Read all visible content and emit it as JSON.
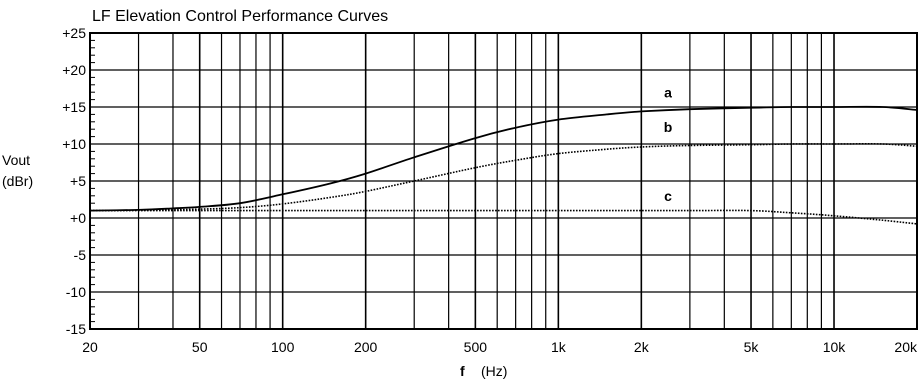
{
  "chart_data": {
    "type": "line",
    "title": "LF Elevation Control Performance Curves",
    "xlabel_symbol": "f",
    "xlabel_unit": "(Hz)",
    "ylabel_line1": "Vout",
    "ylabel_line2": "(dBr)",
    "x_scale": "log",
    "xlim": [
      20,
      20000
    ],
    "ylim": [
      -15,
      25
    ],
    "grid": true,
    "xticks": [
      {
        "v": 20,
        "label": "20"
      },
      {
        "v": 50,
        "label": "50"
      },
      {
        "v": 100,
        "label": "100"
      },
      {
        "v": 200,
        "label": "200"
      },
      {
        "v": 500,
        "label": "500"
      },
      {
        "v": 1000,
        "label": "1k"
      },
      {
        "v": 2000,
        "label": "2k"
      },
      {
        "v": 5000,
        "label": "5k"
      },
      {
        "v": 10000,
        "label": "10k"
      },
      {
        "v": 20000,
        "label": "20k"
      }
    ],
    "yticks": [
      {
        "v": 25,
        "label": "+25"
      },
      {
        "v": 20,
        "label": "+20"
      },
      {
        "v": 15,
        "label": "+15"
      },
      {
        "v": 10,
        "label": "+10"
      },
      {
        "v": 5,
        "label": "+5"
      },
      {
        "v": 0,
        "label": "+0"
      },
      {
        "v": -5,
        "label": "-5"
      },
      {
        "v": -10,
        "label": "-10"
      },
      {
        "v": -15,
        "label": "-15"
      }
    ],
    "series": [
      {
        "name": "a",
        "style": "solid",
        "x": [
          20,
          30,
          40,
          50,
          70,
          100,
          150,
          200,
          300,
          500,
          700,
          1000,
          1500,
          2000,
          3000,
          5000,
          7000,
          10000,
          15000,
          20000
        ],
        "values": [
          1.0,
          1.1,
          1.3,
          1.5,
          2.0,
          3.2,
          4.7,
          6.0,
          8.2,
          10.8,
          12.2,
          13.3,
          14.0,
          14.4,
          14.7,
          14.9,
          15.0,
          15.0,
          15.0,
          14.6
        ]
      },
      {
        "name": "b",
        "style": "dotted",
        "x": [
          20,
          30,
          40,
          50,
          70,
          100,
          150,
          200,
          300,
          500,
          700,
          1000,
          1500,
          2000,
          3000,
          5000,
          7000,
          10000,
          15000,
          20000
        ],
        "values": [
          1.0,
          1.05,
          1.1,
          1.2,
          1.4,
          1.9,
          2.8,
          3.6,
          5.0,
          6.8,
          7.8,
          8.7,
          9.3,
          9.6,
          9.8,
          9.9,
          10.0,
          10.0,
          10.0,
          9.7
        ]
      },
      {
        "name": "c",
        "style": "dotted",
        "x": [
          20,
          50,
          100,
          200,
          500,
          1000,
          2000,
          3000,
          5000,
          7000,
          10000,
          15000,
          20000
        ],
        "values": [
          1.0,
          1.0,
          1.0,
          1.0,
          1.0,
          1.0,
          1.0,
          1.0,
          1.0,
          0.7,
          0.3,
          -0.3,
          -0.8
        ]
      }
    ],
    "curve_labels": [
      {
        "text": "a",
        "x": 2500,
        "y": 16.3
      },
      {
        "text": "b",
        "x": 2500,
        "y": 11.6
      },
      {
        "text": "c",
        "x": 2500,
        "y": 2.3
      }
    ],
    "colors": {
      "grid": "#000000",
      "series": "#000000"
    }
  }
}
